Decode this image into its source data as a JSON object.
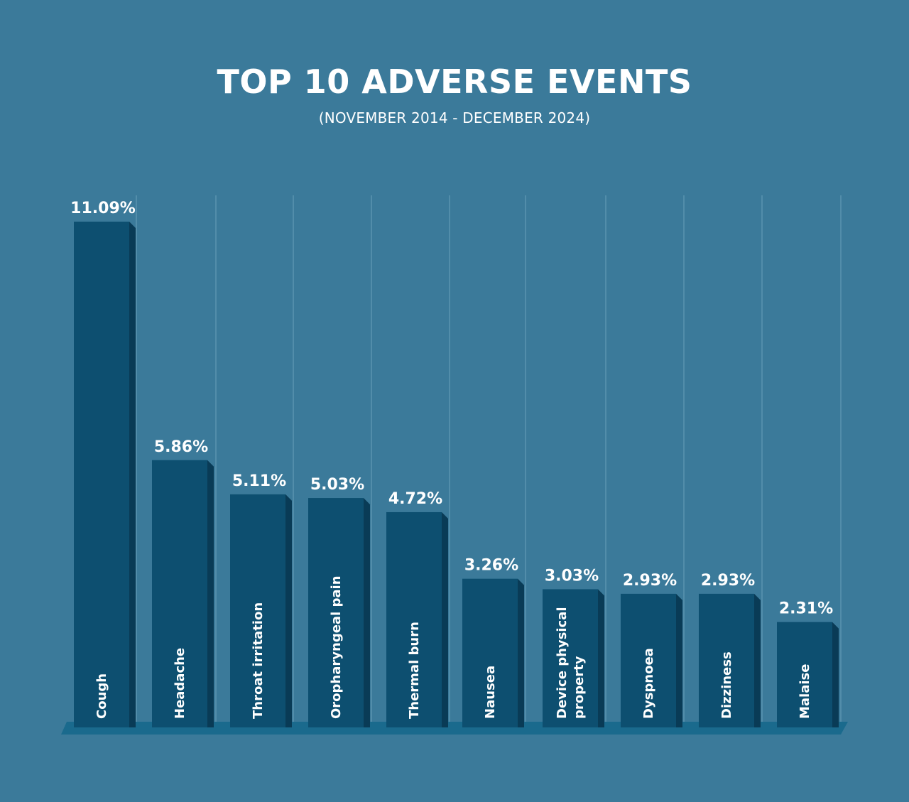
{
  "header": {
    "title": "TOP 10 ADVERSE EVENTS",
    "subtitle": "(NOVEMBER 2014 - DECEMBER 2024)"
  },
  "colors": {
    "background": "#3b7a9a",
    "bar_face": "#0d4f70",
    "bar_side": "#093b56",
    "floor": "#1a6a8d",
    "text": "#ffffff",
    "grid": "#7fb1c9"
  },
  "chart_data": {
    "type": "bar",
    "categories": [
      "Cough",
      "Headache",
      "Throat irritation",
      "Oropharyngeal pain",
      "Thermal burn",
      "Nausea",
      "Device physical property",
      "Dyspnoea",
      "Dizziness",
      "Malaise"
    ],
    "category_lines": [
      [
        "Cough"
      ],
      [
        "Headache"
      ],
      [
        "Throat irritation"
      ],
      [
        "Oropharyngeal pain"
      ],
      [
        "Thermal burn"
      ],
      [
        "Nausea"
      ],
      [
        "Device physical",
        "property"
      ],
      [
        "Dyspnoea"
      ],
      [
        "Dizziness"
      ],
      [
        "Malaise"
      ]
    ],
    "values": [
      11.09,
      5.86,
      5.11,
      5.03,
      4.72,
      3.26,
      3.03,
      2.93,
      2.93,
      2.31
    ],
    "value_labels": [
      "11.09%",
      "5.86%",
      "5.11%",
      "5.03%",
      "4.72%",
      "3.26%",
      "3.03%",
      "2.93%",
      "2.93%",
      "2.31%"
    ],
    "unit": "%",
    "ylim": [
      0,
      11.09
    ],
    "grid": true,
    "legend": "none"
  }
}
